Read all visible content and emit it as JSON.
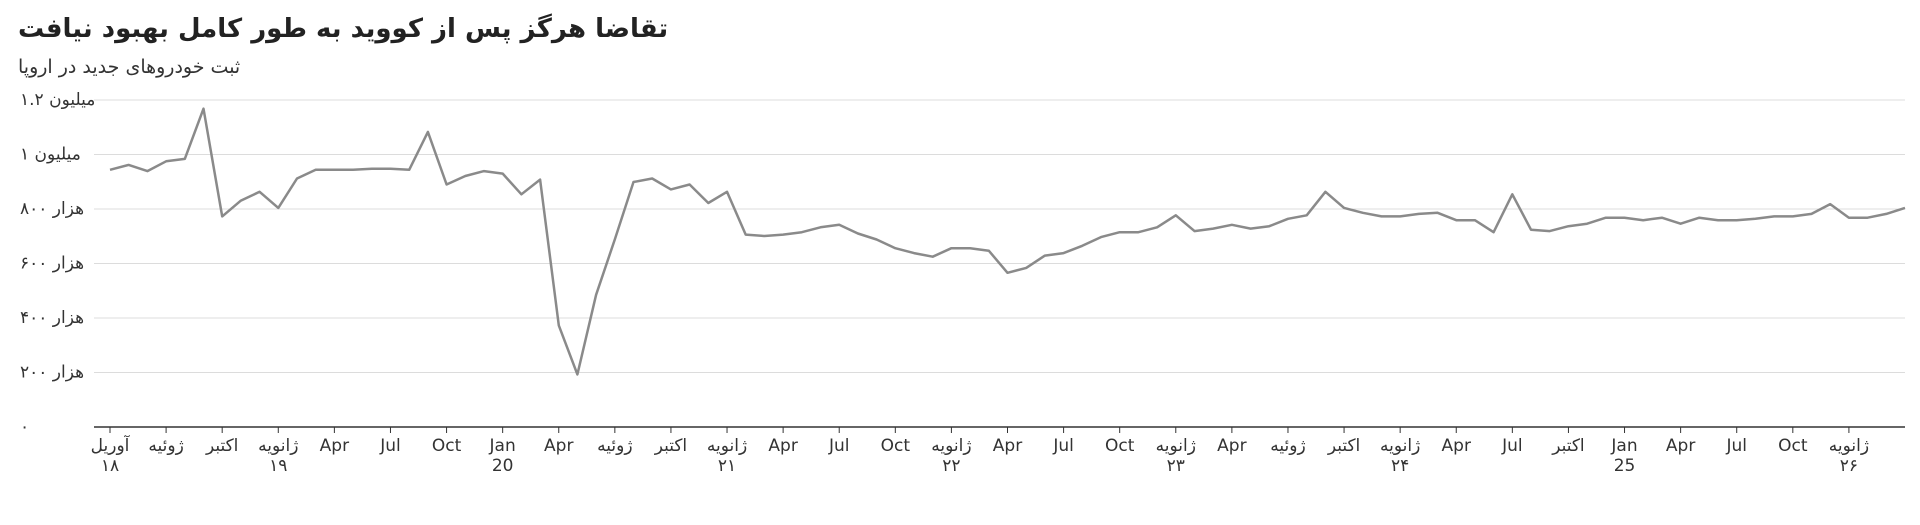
{
  "chart_data": {
    "type": "line",
    "title": "تقاضا هرگز پس از کووید به طور کامل بهبود نیافت",
    "subtitle": "ثبت خودروهای جدید در اروپا",
    "categories": [
      "آوریل\n۱۸",
      null,
      null,
      "ژوئیه",
      null,
      null,
      "اکتبر",
      null,
      null,
      "ژانویه\n۱۹",
      null,
      null,
      "Apr",
      null,
      null,
      "Jul",
      null,
      null,
      "Oct",
      null,
      null,
      "Jan\n20",
      null,
      null,
      "Apr",
      null,
      null,
      "ژوئیه",
      null,
      null,
      "اکتبر",
      null,
      null,
      "ژانویه\n۲۱",
      null,
      null,
      "Apr",
      null,
      null,
      "Jul",
      null,
      null,
      "Oct",
      null,
      null,
      "ژانویه\n۲۲",
      null,
      null,
      "Apr",
      null,
      null,
      "Jul",
      null,
      null,
      "Oct",
      null,
      null,
      "ژانویه\n۲۳",
      null,
      null,
      "Apr",
      null,
      null,
      "ژوئیه",
      null,
      null,
      "اکتبر",
      null,
      null,
      "ژانویه\n۲۴",
      null,
      null,
      "Apr",
      null,
      null,
      "Jul",
      null,
      null,
      "اکتبر",
      null,
      null,
      "Jan\n25",
      null,
      null,
      "Apr",
      null,
      null,
      "Jul",
      null,
      null,
      "Oct",
      null,
      null,
      "ژانویه\n۲۶",
      null,
      null,
      null
    ],
    "values": [
      944000,
      962000,
      939000,
      975000,
      984000,
      1168000,
      773000,
      831000,
      863000,
      804000,
      912000,
      944000,
      944000,
      944000,
      948000,
      948000,
      944000,
      1083000,
      890000,
      921000,
      939000,
      930000,
      854000,
      908000,
      373000,
      193000,
      485000,
      688000,
      899000,
      912000,
      872000,
      890000,
      822000,
      863000,
      706000,
      701000,
      706000,
      715000,
      733000,
      742000,
      710000,
      688000,
      656000,
      638000,
      625000,
      656000,
      656000,
      647000,
      566000,
      584000,
      629000,
      638000,
      665000,
      697000,
      715000,
      715000,
      733000,
      777000,
      719000,
      728000,
      742000,
      728000,
      737000,
      764000,
      777000,
      863000,
      804000,
      786000,
      773000,
      773000,
      782000,
      786000,
      759000,
      759000,
      715000,
      854000,
      724000,
      719000,
      737000,
      746000,
      768000,
      768000,
      759000,
      768000,
      746000,
      768000,
      759000,
      759000,
      764000,
      773000,
      773000,
      782000,
      818000,
      768000,
      768000,
      782000,
      804000
    ],
    "color": "#8a8a8a",
    "ylim": [
      0,
      1200000
    ],
    "yticks": [
      {
        "value": 0,
        "label": "۰"
      },
      {
        "value": 200000,
        "label": "۲۰۰ هزار"
      },
      {
        "value": 400000,
        "label": "۴۰۰ هزار"
      },
      {
        "value": 600000,
        "label": "۶۰۰ هزار"
      },
      {
        "value": 800000,
        "label": "۸۰۰ هزار"
      },
      {
        "value": 1000000,
        "label": "۱ میلیون"
      },
      {
        "value": 1200000,
        "label": "۱.۲ میلیون"
      }
    ],
    "grid": true
  }
}
